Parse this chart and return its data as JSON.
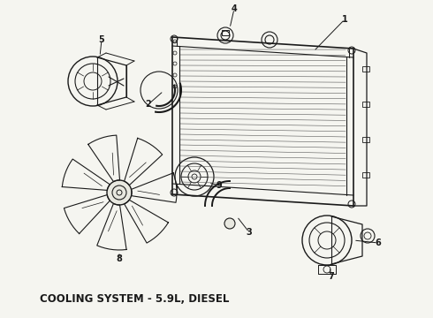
{
  "title": "COOLING SYSTEM - 5.9L, DIESEL",
  "bg_color": "#f5f5f0",
  "line_color": "#1a1a1a",
  "title_fontsize": 8.5,
  "fig_width": 4.9,
  "fig_height": 3.6,
  "dpi": 100
}
